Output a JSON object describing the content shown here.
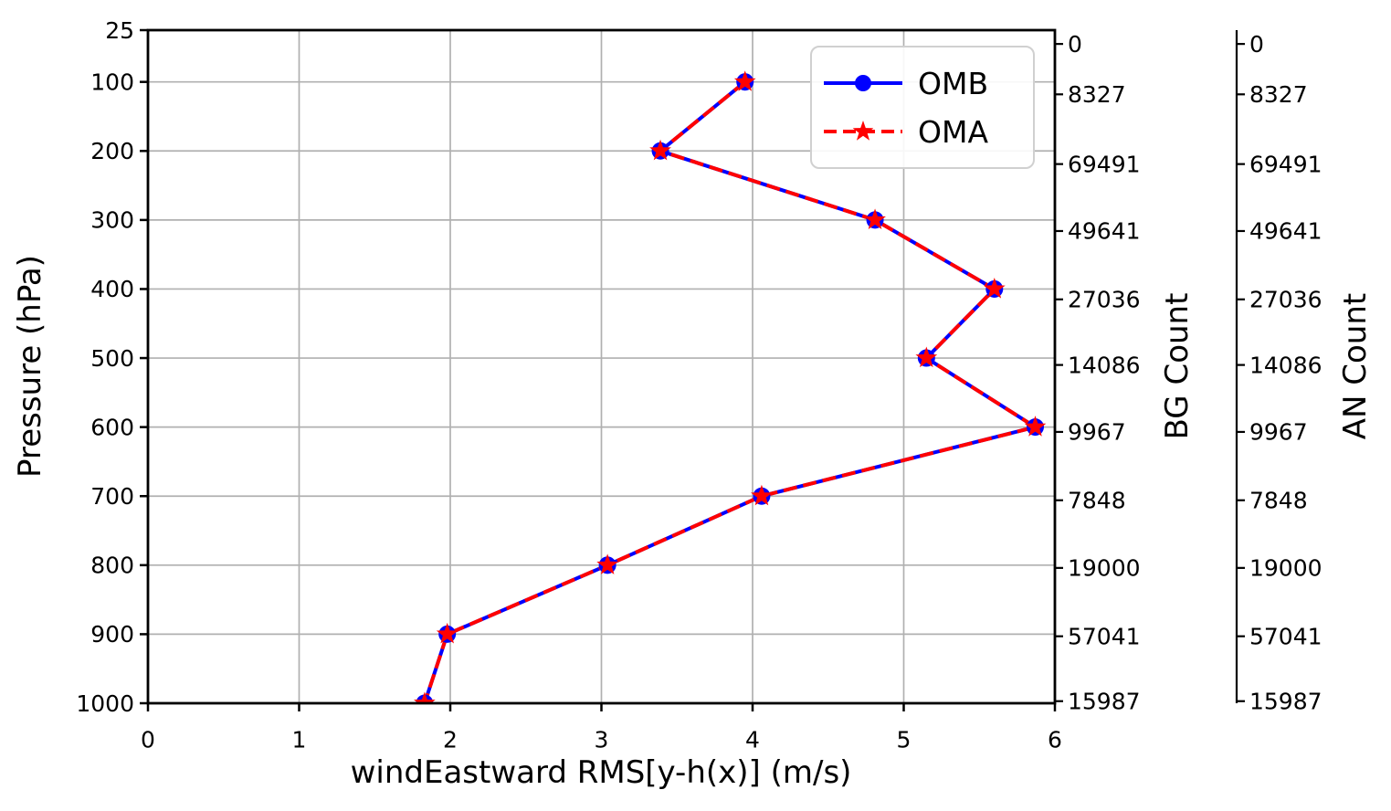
{
  "chart_data": {
    "type": "line",
    "title": "",
    "xlabel": "windEastward RMS[y-h(x)] (m/s)",
    "ylabel": "Pressure (hPa)",
    "xlim": [
      0,
      6
    ],
    "ylim": [
      25,
      1000
    ],
    "y_axis_direction": "inverted-pressure-downward",
    "x_ticks": [
      0,
      1,
      2,
      3,
      4,
      5,
      6
    ],
    "y_ticks": [
      25,
      100,
      200,
      300,
      400,
      500,
      600,
      700,
      800,
      900,
      1000
    ],
    "grid": true,
    "grid_color": "#b0b0b0",
    "legend_position": "upper right",
    "pressure_levels_hPa": [
      100,
      200,
      300,
      400,
      500,
      600,
      700,
      800,
      900,
      1000
    ],
    "series": [
      {
        "name": "OMB",
        "color": "#0000ff",
        "style": "solid",
        "marker": "circle",
        "values": [
          3.95,
          3.39,
          4.81,
          5.6,
          5.15,
          5.87,
          4.06,
          3.04,
          1.98,
          1.83
        ]
      },
      {
        "name": "OMA",
        "color": "#ff0000",
        "style": "dashed",
        "marker": "star",
        "values": [
          3.95,
          3.39,
          4.81,
          5.6,
          5.15,
          5.87,
          4.06,
          3.04,
          1.98,
          1.83
        ]
      }
    ],
    "right_axes": [
      {
        "label": "BG Count",
        "tick_values": [
          0,
          8327,
          69491,
          49641,
          27036,
          14086,
          9967,
          7848,
          19000,
          57041,
          15987
        ],
        "tick_pressures_hPa": [
          45,
          118,
          219,
          316,
          415,
          510,
          607,
          706,
          804,
          903,
          997
        ]
      },
      {
        "label": "AN Count",
        "tick_values": [
          0,
          8327,
          69491,
          49641,
          27036,
          14086,
          9967,
          7848,
          19000,
          57041,
          15987
        ],
        "tick_pressures_hPa": [
          45,
          118,
          219,
          316,
          415,
          510,
          607,
          706,
          804,
          903,
          997
        ]
      }
    ]
  }
}
